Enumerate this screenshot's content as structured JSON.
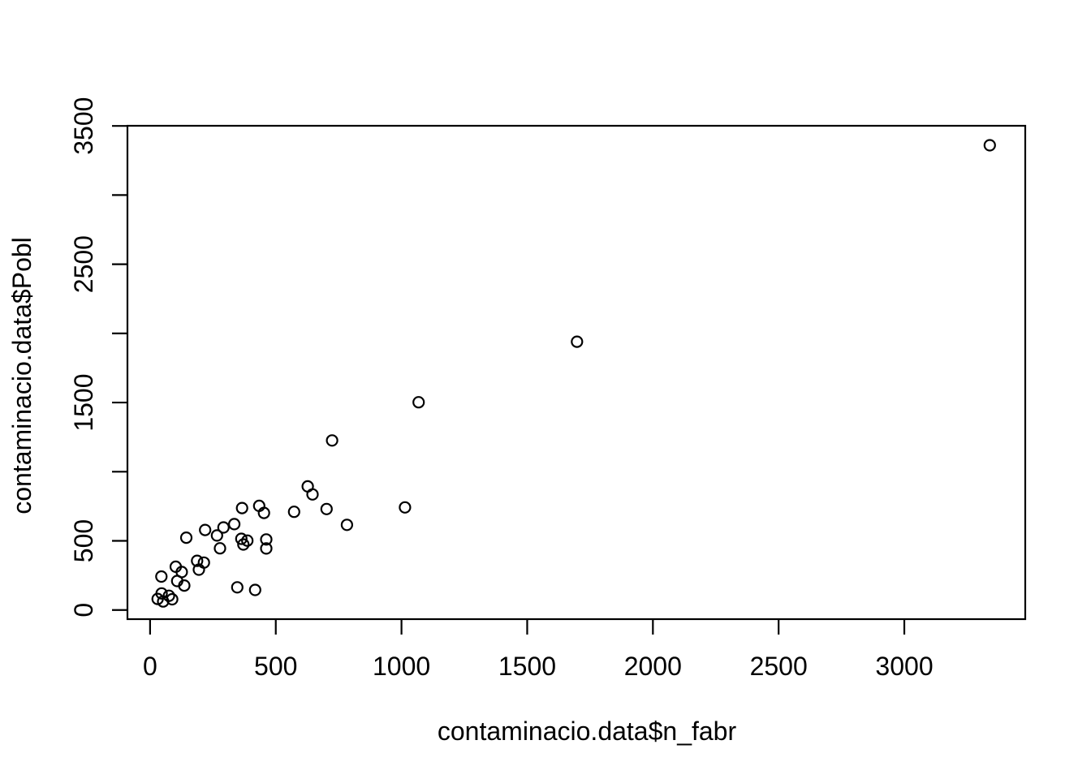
{
  "chart_data": {
    "type": "scatter",
    "title": "",
    "xlabel": "contaminacio.data$n_fabr",
    "ylabel": "contaminacio.data$Pobl",
    "xlim": [
      -90,
      3481
    ],
    "ylim": [
      -66,
      3501
    ],
    "x_ticks": [
      0,
      500,
      1000,
      1500,
      2000,
      2500,
      3000
    ],
    "x_tick_labels": [
      "0",
      "500",
      "1000",
      "1500",
      "2000",
      "2500",
      "3000"
    ],
    "y_ticks": [
      0,
      500,
      1000,
      1500,
      2000,
      2500,
      3000,
      3500
    ],
    "y_tick_labels": [
      "0",
      "500",
      "",
      "1500",
      "",
      "2500",
      "",
      "3500"
    ],
    "grid": false,
    "legend": null,
    "background_color": "#ffffff",
    "foreground_color": "#000000",
    "marker": {
      "shape": "open-circle",
      "radius_px": 6.5,
      "stroke_px": 2.2,
      "color": "#000000"
    },
    "points": [
      [
        3340,
        3360
      ],
      [
        1698,
        1940
      ],
      [
        1068,
        1502
      ],
      [
        1014,
        742
      ],
      [
        783,
        616
      ],
      [
        724,
        1226
      ],
      [
        702,
        730
      ],
      [
        646,
        836
      ],
      [
        627,
        894
      ],
      [
        573,
        710
      ],
      [
        462,
        510
      ],
      [
        462,
        445
      ],
      [
        453,
        702
      ],
      [
        434,
        753
      ],
      [
        418,
        145
      ],
      [
        387,
        502
      ],
      [
        371,
        474
      ],
      [
        366,
        737
      ],
      [
        363,
        515
      ],
      [
        347,
        164
      ],
      [
        335,
        621
      ],
      [
        292,
        597
      ],
      [
        278,
        446
      ],
      [
        266,
        539
      ],
      [
        219,
        579
      ],
      [
        214,
        343
      ],
      [
        194,
        292
      ],
      [
        187,
        356
      ],
      [
        144,
        523
      ],
      [
        136,
        177
      ],
      [
        126,
        275
      ],
      [
        108,
        210
      ],
      [
        102,
        313
      ],
      [
        88,
        78
      ],
      [
        75,
        103
      ],
      [
        52,
        62
      ],
      [
        46,
        120
      ],
      [
        45,
        242
      ],
      [
        30,
        80
      ]
    ]
  }
}
